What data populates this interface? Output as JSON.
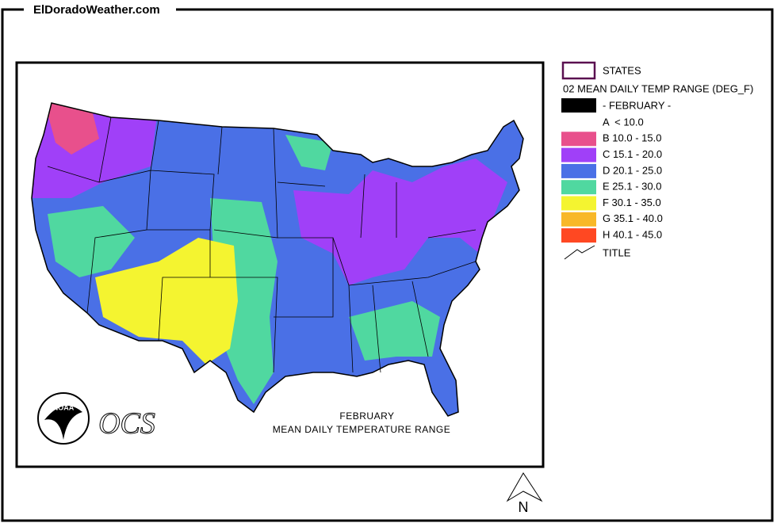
{
  "header": {
    "site": "ElDoradoWeather.com"
  },
  "map": {
    "caption": [
      "FEBRUARY",
      "MEAN DAILY TEMPERATURE RANGE"
    ],
    "logo": "NOAA",
    "agency": "OCS",
    "north": "N"
  },
  "legend": {
    "states": "STATES",
    "subtitle": "02 MEAN DAILY TEMP RANGE (DEG_F)",
    "period": "- FEBRUARY -",
    "classes": [
      {
        "label": "A  < 10.0"
      },
      {
        "label": "B 10.0 - 15.0",
        "color": "#e8508c"
      },
      {
        "label": "C 15.1 - 20.0",
        "color": "#a040f8"
      },
      {
        "label": "D 20.1 - 25.0",
        "color": "#4a70e6"
      },
      {
        "label": "E 25.1 - 30.0",
        "color": "#50d8a0"
      },
      {
        "label": "F 30.1 - 35.0",
        "color": "#f4f430"
      },
      {
        "label": "G 35.1 - 40.0",
        "color": "#f8b828"
      },
      {
        "label": "H 40.1 - 45.0",
        "color": "#ff4822"
      }
    ],
    "title": "TITLE"
  }
}
